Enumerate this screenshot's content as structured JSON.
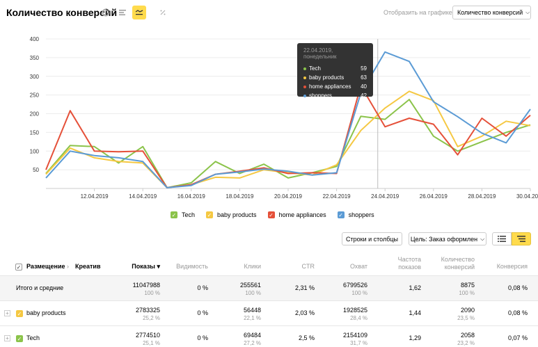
{
  "header": {
    "title": "Количество конверсий",
    "show_label": "Отобразить на графике:",
    "metric_select": "Количество конверсий"
  },
  "icons": [
    "pie-icon",
    "bars-icon",
    "line-icon",
    "percent-icon"
  ],
  "chart_data": {
    "type": "line",
    "x": [
      "10.04.2019",
      "11.04.2019",
      "12.04.2019",
      "13.04.2019",
      "14.04.2019",
      "15.04.2019",
      "16.04.2019",
      "17.04.2019",
      "18.04.2019",
      "19.04.2019",
      "20.04.2019",
      "21.04.2019",
      "22.04.2019",
      "23.04.2019",
      "24.04.2019",
      "25.04.2019",
      "26.04.2019",
      "27.04.2019",
      "28.04.2019",
      "29.04.2019",
      "30.04.2019"
    ],
    "x_tick_labels": [
      "12.04.2019",
      "14.04.2019",
      "16.04.2019",
      "18.04.2019",
      "20.04.2019",
      "22.04.2019",
      "24.04.2019",
      "26.04.2019",
      "28.04.2019",
      "30.04.2019"
    ],
    "ylim": [
      0,
      400
    ],
    "y_ticks": [
      50,
      100,
      150,
      200,
      250,
      300,
      350,
      400
    ],
    "series": [
      {
        "name": "Tech",
        "color": "#8bc34a",
        "values": [
          40,
          115,
          112,
          68,
          112,
          2,
          15,
          72,
          40,
          65,
          28,
          42,
          59,
          193,
          185,
          238,
          140,
          100,
          125,
          150,
          170
        ]
      },
      {
        "name": "baby products",
        "color": "#f5c842",
        "values": [
          38,
          108,
          82,
          72,
          68,
          2,
          10,
          30,
          28,
          50,
          42,
          36,
          63,
          155,
          215,
          260,
          235,
          112,
          140,
          180,
          168
        ]
      },
      {
        "name": "home appliances",
        "color": "#e55039",
        "values": [
          50,
          208,
          100,
          98,
          100,
          2,
          10,
          38,
          46,
          55,
          40,
          42,
          40,
          275,
          165,
          188,
          172,
          90,
          188,
          140,
          196
        ]
      },
      {
        "name": "shoppers",
        "color": "#5b9bd5",
        "values": [
          28,
          100,
          88,
          82,
          72,
          2,
          8,
          38,
          44,
          52,
          46,
          36,
          42,
          255,
          365,
          340,
          232,
          192,
          148,
          122,
          212
        ]
      }
    ],
    "tooltip": {
      "date": "22.04.2019, понедельник",
      "rows": [
        {
          "name": "Tech",
          "value": "59",
          "color": "#8bc34a"
        },
        {
          "name": "baby products",
          "value": "63",
          "color": "#f5c842"
        },
        {
          "name": "home appliances",
          "value": "40",
          "color": "#e55039"
        },
        {
          "name": "shoppers",
          "value": "42",
          "color": "#5b9bd5"
        }
      ]
    }
  },
  "legend": [
    {
      "name": "Tech",
      "color": "#8bc34a"
    },
    {
      "name": "baby products",
      "color": "#f5c842"
    },
    {
      "name": "home appliances",
      "color": "#e55039"
    },
    {
      "name": "shoppers",
      "color": "#5b9bd5"
    }
  ],
  "toolbar": {
    "rows_cols": "Строки и столбцы",
    "goal_select": "Цель: Заказ оформлен"
  },
  "table": {
    "headers": {
      "placement": "Размещение",
      "creative": "Креатив",
      "shows": "Показы ▾",
      "visibility": "Видимость",
      "clicks": "Клики",
      "ctr": "CTR",
      "reach": "Охват",
      "freq_1": "Частота",
      "freq_2": "показов",
      "conv_1": "Количество",
      "conv_2": "конверсий",
      "conversion": "Конверсия"
    },
    "total": {
      "name": "Итого и средние",
      "shows": "11047988",
      "shows_pct": "100 %",
      "visibility": "0 %",
      "clicks": "255561",
      "clicks_pct": "100 %",
      "ctr": "2,31 %",
      "reach": "6799526",
      "reach_pct": "100 %",
      "freq": "1,62",
      "conv": "8875",
      "conv_pct": "100 %",
      "conversion": "0,08 %"
    },
    "rows": [
      {
        "name": "baby products",
        "color": "#f5c842",
        "shows": "2783325",
        "shows_pct": "25,2 %",
        "visibility": "0 %",
        "clicks": "56448",
        "clicks_pct": "22,1 %",
        "ctr": "2,03 %",
        "reach": "1928525",
        "reach_pct": "28,4 %",
        "freq": "1,44",
        "conv": "2090",
        "conv_pct": "23,5 %",
        "conversion": "0,08 %"
      },
      {
        "name": "Tech",
        "color": "#8bc34a",
        "shows": "2774510",
        "shows_pct": "25,1 %",
        "visibility": "0 %",
        "clicks": "69484",
        "clicks_pct": "27,2 %",
        "ctr": "2,5 %",
        "reach": "2154109",
        "reach_pct": "31,7 %",
        "freq": "1,29",
        "conv": "2058",
        "conv_pct": "23,2 %",
        "conversion": "0,07 %"
      }
    ]
  }
}
